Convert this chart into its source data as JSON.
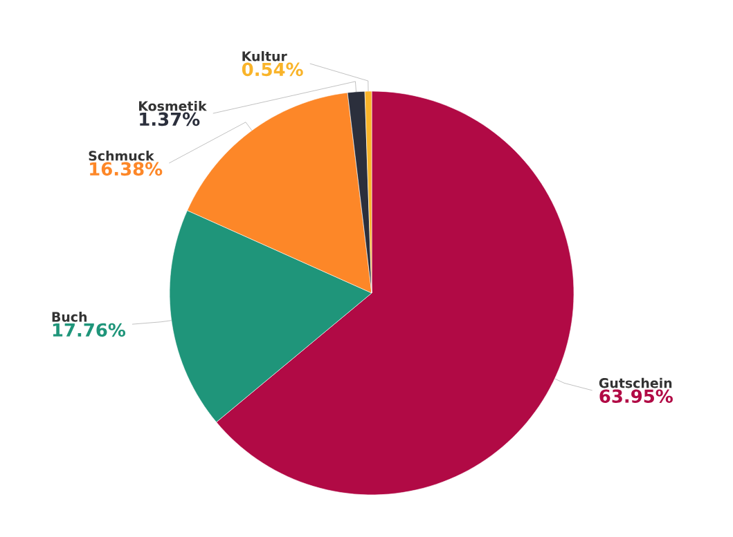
{
  "chart_data": {
    "type": "pie",
    "categories": [
      "Gutschein",
      "Buch",
      "Schmuck",
      "Kosmetik",
      "Kultur"
    ],
    "values": [
      63.95,
      17.76,
      16.38,
      1.37,
      0.54
    ],
    "value_labels": [
      "63.95%",
      "17.76%",
      "16.38%",
      "1.37%",
      "0.54%"
    ],
    "colors": [
      "#b10a45",
      "#1f957a",
      "#fd8728",
      "#2b2f3c",
      "#f9b42a"
    ]
  }
}
